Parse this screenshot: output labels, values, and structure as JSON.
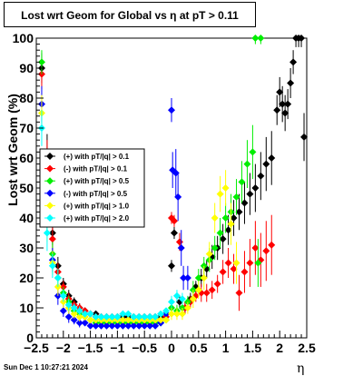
{
  "chart_data": {
    "type": "scatter",
    "title": "Lost wrt Geom for Global vs  η at pT > 0.11",
    "xlabel": "η",
    "ylabel": "Lost wrt Geom (%)",
    "xlim": [
      -2.5,
      2.5
    ],
    "ylim": [
      0,
      100
    ],
    "x_ticks": [
      -2.5,
      -2,
      -1.5,
      -1,
      -0.5,
      0,
      0.5,
      1,
      1.5,
      2,
      2.5
    ],
    "x_tick_labels": [
      "−2.5",
      "−2",
      "−1.5",
      "−1",
      "−0.5",
      "0",
      "0.5",
      "1",
      "1.5",
      "2",
      "2.5"
    ],
    "y_ticks": [
      0,
      10,
      20,
      30,
      40,
      50,
      60,
      70,
      80,
      90,
      100
    ],
    "y_tick_labels": [
      "0",
      "10",
      "20",
      "30",
      "40",
      "50",
      "60",
      "70",
      "80",
      "90",
      "100"
    ],
    "legend_position": "middle-left",
    "timestamp": "Sun Dec  1 10:27:21 2024",
    "series": [
      {
        "name": "(+) with pT/|q| > 0.1",
        "color": "#000000",
        "points": [
          [
            -2.4,
            90,
            5
          ],
          [
            -2.3,
            60,
            8
          ],
          [
            -2.2,
            35,
            4
          ],
          [
            -2.1,
            24,
            3
          ],
          [
            -2.0,
            18,
            2
          ],
          [
            -1.9,
            14,
            2
          ],
          [
            -1.8,
            12,
            1.5
          ],
          [
            -1.7,
            10,
            1.5
          ],
          [
            -1.6,
            9,
            1
          ],
          [
            -1.5,
            8,
            1
          ],
          [
            -1.4,
            8,
            1
          ],
          [
            -1.3,
            7,
            1
          ],
          [
            -1.2,
            7,
            1
          ],
          [
            -1.1,
            7,
            1
          ],
          [
            -1.0,
            7,
            1
          ],
          [
            -0.9,
            7,
            1
          ],
          [
            -0.8,
            7,
            1
          ],
          [
            -0.7,
            7,
            1
          ],
          [
            -0.6,
            7,
            1
          ],
          [
            -0.5,
            7,
            1
          ],
          [
            -0.4,
            7,
            1
          ],
          [
            -0.3,
            7,
            1
          ],
          [
            -0.2,
            7,
            1
          ],
          [
            -0.1,
            8,
            1
          ],
          [
            0.0,
            24,
            2
          ],
          [
            0.05,
            35,
            2
          ],
          [
            0.15,
            12,
            2
          ],
          [
            0.25,
            10,
            2
          ],
          [
            0.35,
            13,
            2
          ],
          [
            0.45,
            17,
            2
          ],
          [
            0.55,
            20,
            3
          ],
          [
            0.65,
            23,
            3
          ],
          [
            0.75,
            27,
            4
          ],
          [
            0.85,
            30,
            4
          ],
          [
            0.95,
            33,
            5
          ],
          [
            1.05,
            36,
            5
          ],
          [
            1.15,
            40,
            6
          ],
          [
            1.25,
            42,
            6
          ],
          [
            1.35,
            45,
            7
          ],
          [
            1.45,
            48,
            7
          ],
          [
            1.55,
            50,
            8
          ],
          [
            1.65,
            54,
            8
          ],
          [
            1.75,
            58,
            9
          ],
          [
            1.85,
            60,
            9
          ],
          [
            1.95,
            76,
            5
          ],
          [
            2.0,
            82,
            5
          ],
          [
            2.05,
            78,
            6
          ],
          [
            2.1,
            75,
            6
          ],
          [
            2.15,
            78,
            5
          ],
          [
            2.2,
            85,
            5
          ],
          [
            2.25,
            92,
            4
          ],
          [
            2.3,
            100,
            3
          ],
          [
            2.35,
            100,
            3
          ],
          [
            2.4,
            100,
            3
          ],
          [
            2.45,
            67,
            8
          ]
        ]
      },
      {
        "name": "(-) with pT/|q| > 0.1",
        "color": "#ff0000",
        "points": [
          [
            -2.4,
            88,
            5
          ],
          [
            -2.3,
            58,
            8
          ],
          [
            -2.2,
            33,
            4
          ],
          [
            -2.1,
            22,
            3
          ],
          [
            -2.0,
            17,
            2
          ],
          [
            -1.9,
            13,
            2
          ],
          [
            -1.8,
            11,
            1.5
          ],
          [
            -1.7,
            10,
            1.5
          ],
          [
            -1.6,
            9,
            1
          ],
          [
            -1.5,
            8,
            1
          ],
          [
            -1.4,
            7,
            1
          ],
          [
            -1.3,
            7,
            1
          ],
          [
            -1.2,
            6,
            1
          ],
          [
            -1.1,
            6,
            1
          ],
          [
            -1.0,
            6,
            1
          ],
          [
            -0.9,
            6,
            1
          ],
          [
            -0.8,
            6,
            1
          ],
          [
            -0.7,
            6,
            1
          ],
          [
            -0.6,
            6,
            1
          ],
          [
            -0.5,
            6,
            1
          ],
          [
            -0.4,
            6,
            1
          ],
          [
            -0.3,
            6,
            1
          ],
          [
            -0.2,
            6,
            1
          ],
          [
            -0.1,
            7,
            1
          ],
          [
            0.0,
            40,
            2
          ],
          [
            0.05,
            39,
            2
          ],
          [
            0.15,
            32,
            3
          ],
          [
            0.25,
            10,
            2
          ],
          [
            0.35,
            12,
            2
          ],
          [
            0.45,
            14,
            2
          ],
          [
            0.55,
            15,
            3
          ],
          [
            0.65,
            15,
            3
          ],
          [
            0.75,
            16,
            3
          ],
          [
            0.85,
            18,
            3
          ],
          [
            0.95,
            22,
            4
          ],
          [
            1.05,
            25,
            5
          ],
          [
            1.15,
            23,
            5
          ],
          [
            1.25,
            15,
            6
          ],
          [
            1.35,
            22,
            7
          ],
          [
            1.45,
            25,
            8
          ],
          [
            1.55,
            30,
            9
          ],
          [
            1.65,
            26,
            9
          ],
          [
            1.75,
            29,
            10
          ],
          [
            1.85,
            31,
            10
          ]
        ]
      },
      {
        "name": "(+) with pT/|q| > 0.5",
        "color": "#00ee00",
        "points": [
          [
            -2.4,
            92,
            4
          ],
          [
            -2.3,
            42,
            6
          ],
          [
            -2.2,
            28,
            4
          ],
          [
            -2.1,
            20,
            3
          ],
          [
            -2.0,
            15,
            2
          ],
          [
            -1.9,
            12,
            2
          ],
          [
            -1.8,
            9,
            1.5
          ],
          [
            -1.7,
            8,
            1.5
          ],
          [
            -1.6,
            7,
            1
          ],
          [
            -1.5,
            6,
            1
          ],
          [
            -1.4,
            5,
            1
          ],
          [
            -1.3,
            5,
            1
          ],
          [
            -1.2,
            5,
            1
          ],
          [
            -1.1,
            5,
            1
          ],
          [
            -1.0,
            5,
            1
          ],
          [
            -0.9,
            5,
            1
          ],
          [
            -0.8,
            5,
            1
          ],
          [
            -0.7,
            5,
            1
          ],
          [
            -0.6,
            5,
            1
          ],
          [
            -0.5,
            5,
            1
          ],
          [
            -0.4,
            5,
            1
          ],
          [
            -0.3,
            5,
            1
          ],
          [
            -0.2,
            5,
            1
          ],
          [
            -0.1,
            6,
            1
          ],
          [
            0.0,
            10,
            2
          ],
          [
            0.1,
            9,
            2
          ],
          [
            0.2,
            10,
            2
          ],
          [
            0.3,
            12,
            2
          ],
          [
            0.4,
            16,
            3
          ],
          [
            0.5,
            20,
            3
          ],
          [
            0.6,
            24,
            3
          ],
          [
            0.7,
            26,
            4
          ],
          [
            0.8,
            30,
            4
          ],
          [
            0.9,
            35,
            5
          ],
          [
            1.0,
            40,
            5
          ],
          [
            1.1,
            42,
            6
          ],
          [
            1.2,
            47,
            6
          ],
          [
            1.3,
            52,
            7
          ],
          [
            1.4,
            58,
            8
          ],
          [
            1.5,
            62,
            9
          ],
          [
            1.55,
            100,
            2
          ],
          [
            1.6,
            25,
            8
          ],
          [
            1.65,
            100,
            2
          ]
        ]
      },
      {
        "name": "(-) with pT/|q| > 0.5",
        "color": "#0000ff",
        "points": [
          [
            -2.4,
            78,
            6
          ],
          [
            -2.3,
            40,
            6
          ],
          [
            -2.2,
            26,
            4
          ],
          [
            -2.1,
            14,
            3
          ],
          [
            -2.0,
            9,
            2
          ],
          [
            -1.9,
            7,
            2
          ],
          [
            -1.8,
            6,
            1.5
          ],
          [
            -1.7,
            5,
            1.5
          ],
          [
            -1.6,
            5,
            1
          ],
          [
            -1.5,
            4,
            1
          ],
          [
            -1.4,
            4,
            1
          ],
          [
            -1.3,
            4,
            1
          ],
          [
            -1.2,
            4,
            1
          ],
          [
            -1.1,
            4,
            1
          ],
          [
            -1.0,
            4,
            1
          ],
          [
            -0.9,
            4,
            1
          ],
          [
            -0.8,
            4,
            1
          ],
          [
            -0.7,
            4,
            1
          ],
          [
            -0.6,
            4,
            1
          ],
          [
            -0.5,
            4,
            1
          ],
          [
            -0.4,
            4,
            1
          ],
          [
            -0.3,
            4,
            1
          ],
          [
            -0.2,
            5,
            1
          ],
          [
            -0.1,
            8,
            2
          ],
          [
            0.0,
            76,
            4
          ],
          [
            0.02,
            56,
            6
          ],
          [
            0.08,
            55,
            8
          ],
          [
            0.12,
            47,
            8
          ],
          [
            0.18,
            30,
            6
          ],
          [
            0.22,
            20,
            4
          ],
          [
            0.3,
            20,
            4
          ]
        ]
      },
      {
        "name": "(+) with pT/|q| > 1.0",
        "color": "#ffff00",
        "points": [
          [
            -2.4,
            75,
            6
          ],
          [
            -2.3,
            38,
            6
          ],
          [
            -2.2,
            25,
            4
          ],
          [
            -2.1,
            17,
            3
          ],
          [
            -2.0,
            12,
            2
          ],
          [
            -1.9,
            10,
            2
          ],
          [
            -1.8,
            8,
            1.5
          ],
          [
            -1.7,
            7,
            1.5
          ],
          [
            -1.6,
            7,
            1
          ],
          [
            -1.5,
            6,
            1
          ],
          [
            -1.4,
            6,
            1
          ],
          [
            -1.3,
            6,
            1
          ],
          [
            -1.2,
            6,
            1
          ],
          [
            -1.1,
            6,
            1
          ],
          [
            -1.0,
            6,
            1
          ],
          [
            -0.9,
            6,
            1
          ],
          [
            -0.8,
            6,
            1
          ],
          [
            -0.7,
            6,
            1
          ],
          [
            -0.6,
            6,
            1
          ],
          [
            -0.5,
            6,
            1
          ],
          [
            -0.4,
            6,
            1
          ],
          [
            -0.3,
            6,
            1
          ],
          [
            -0.2,
            6,
            1
          ],
          [
            -0.1,
            6,
            1
          ],
          [
            0.0,
            8,
            2
          ],
          [
            0.1,
            8,
            2
          ],
          [
            0.2,
            8,
            2
          ],
          [
            0.3,
            10,
            2
          ],
          [
            0.4,
            13,
            3
          ],
          [
            0.5,
            16,
            3
          ],
          [
            0.6,
            20,
            4
          ],
          [
            0.7,
            28,
            4
          ],
          [
            0.8,
            40,
            5
          ],
          [
            0.9,
            48,
            6
          ],
          [
            1.0,
            50,
            6
          ],
          [
            1.1,
            38,
            7
          ],
          [
            1.2,
            25,
            7
          ]
        ]
      },
      {
        "name": "(+) with pT/|q| > 2.0",
        "color": "#00ffff",
        "points": [
          [
            -2.4,
            70,
            6
          ],
          [
            -2.3,
            35,
            6
          ],
          [
            -2.2,
            24,
            4
          ],
          [
            -2.1,
            20,
            3
          ],
          [
            -2.0,
            14,
            2
          ],
          [
            -1.9,
            11,
            2
          ],
          [
            -1.8,
            10,
            1.5
          ],
          [
            -1.7,
            9,
            1.5
          ],
          [
            -1.6,
            8,
            1
          ],
          [
            -1.5,
            8,
            1
          ],
          [
            -1.4,
            7,
            1
          ],
          [
            -1.3,
            7,
            1
          ],
          [
            -1.2,
            7,
            1
          ],
          [
            -1.1,
            7,
            1
          ],
          [
            -1.0,
            7,
            1
          ],
          [
            -0.9,
            8,
            1
          ],
          [
            -0.8,
            8,
            1
          ],
          [
            -0.7,
            7,
            1
          ],
          [
            -0.6,
            7,
            1
          ],
          [
            -0.5,
            7,
            1
          ],
          [
            -0.4,
            7,
            1
          ],
          [
            -0.3,
            7,
            1
          ],
          [
            -0.2,
            8,
            1
          ],
          [
            -0.1,
            9,
            1
          ],
          [
            0.0,
            12,
            2
          ],
          [
            0.1,
            14,
            2
          ],
          [
            0.2,
            13,
            2
          ]
        ]
      }
    ]
  }
}
